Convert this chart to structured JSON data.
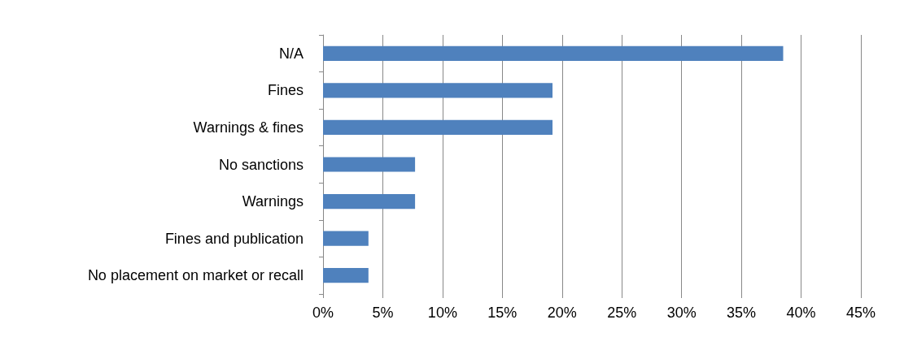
{
  "chart_data": {
    "type": "bar",
    "orientation": "horizontal",
    "categories": [
      "N/A",
      "Fines",
      "Warnings & fines",
      "No sanctions",
      "Warnings",
      "Fines and publication",
      "No placement on market or recall"
    ],
    "values": [
      38.5,
      19.2,
      19.2,
      7.7,
      7.7,
      3.8,
      3.8
    ],
    "color": "#4f81bd",
    "xlim": [
      0,
      45
    ],
    "xticks": [
      {
        "value": 0,
        "label": "0%"
      },
      {
        "value": 5,
        "label": "5%"
      },
      {
        "value": 10,
        "label": "10%"
      },
      {
        "value": 15,
        "label": "15%"
      },
      {
        "value": 20,
        "label": "20%"
      },
      {
        "value": 25,
        "label": "25%"
      },
      {
        "value": 30,
        "label": "30%"
      },
      {
        "value": 35,
        "label": "35%"
      },
      {
        "value": 40,
        "label": "40%"
      },
      {
        "value": 45,
        "label": "45%"
      }
    ],
    "grid": "x"
  }
}
